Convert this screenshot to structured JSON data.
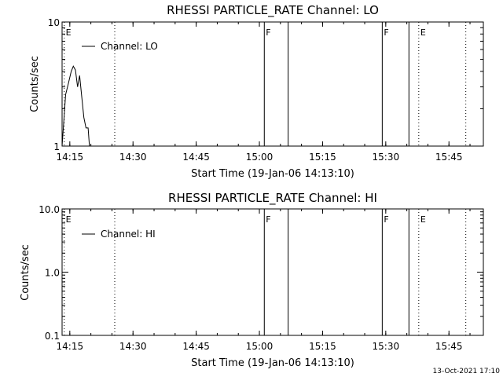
{
  "footer": {
    "date_stamp": "13-Oct-2021 17:10"
  },
  "chart_data": [
    {
      "type": "line",
      "title": "RHESSI PARTICLE_RATE Channel: LO",
      "xlabel": "Start Time (19-Jan-06 14:13:10)",
      "ylabel": "Counts/sec",
      "y_scale": "log",
      "ylim": [
        1,
        10
      ],
      "y_ticks": [
        "1",
        "10"
      ],
      "xlim": [
        "14:13:10",
        "15:53:10"
      ],
      "x_ticks": [
        "14:15",
        "14:30",
        "14:45",
        "15:00",
        "15:15",
        "15:30",
        "15:45"
      ],
      "grid": false,
      "legend": "top-left",
      "series": [
        {
          "name": "Channel: LO",
          "x": [
            "14:13:10",
            "14:14:00",
            "14:14:40",
            "14:15:20",
            "14:15:50",
            "14:16:20",
            "14:16:50",
            "14:17:20",
            "14:17:50",
            "14:18:20",
            "14:18:50",
            "14:19:20",
            "14:19:40"
          ],
          "y": [
            1.0,
            2.6,
            3.2,
            4.0,
            4.4,
            4.1,
            3.0,
            3.7,
            2.5,
            1.7,
            1.4,
            1.4,
            1.0
          ]
        }
      ],
      "markers": [
        {
          "label": "E",
          "time": "14:13:40",
          "style": "dotted"
        },
        {
          "label": "",
          "time": "14:25:40",
          "style": "dotted"
        },
        {
          "label": "F",
          "time": "15:01:10",
          "style": "solid"
        },
        {
          "label": "",
          "time": "15:06:50",
          "style": "solid"
        },
        {
          "label": "F",
          "time": "15:29:10",
          "style": "solid"
        },
        {
          "label": "",
          "time": "15:35:30",
          "style": "solid"
        },
        {
          "label": "E",
          "time": "15:37:50",
          "style": "dotted"
        },
        {
          "label": "",
          "time": "15:49:00",
          "style": "dotted"
        }
      ]
    },
    {
      "type": "line",
      "title": "RHESSI PARTICLE_RATE Channel: HI",
      "xlabel": "Start Time (19-Jan-06 14:13:10)",
      "ylabel": "Counts/sec",
      "y_scale": "log",
      "ylim": [
        0.1,
        10
      ],
      "y_ticks": [
        "0.1",
        "1.0",
        "10.0"
      ],
      "xlim": [
        "14:13:10",
        "15:53:10"
      ],
      "x_ticks": [
        "14:15",
        "14:30",
        "14:45",
        "15:00",
        "15:15",
        "15:30",
        "15:45"
      ],
      "grid": false,
      "legend": "top-left",
      "series": [
        {
          "name": "Channel: HI",
          "x": [],
          "y": []
        }
      ],
      "markers": [
        {
          "label": "E",
          "time": "14:13:40",
          "style": "dotted"
        },
        {
          "label": "",
          "time": "14:25:40",
          "style": "dotted"
        },
        {
          "label": "F",
          "time": "15:01:10",
          "style": "solid"
        },
        {
          "label": "",
          "time": "15:06:50",
          "style": "solid"
        },
        {
          "label": "F",
          "time": "15:29:10",
          "style": "solid"
        },
        {
          "label": "",
          "time": "15:35:30",
          "style": "solid"
        },
        {
          "label": "E",
          "time": "15:37:50",
          "style": "dotted"
        },
        {
          "label": "",
          "time": "15:49:00",
          "style": "dotted"
        }
      ]
    }
  ]
}
